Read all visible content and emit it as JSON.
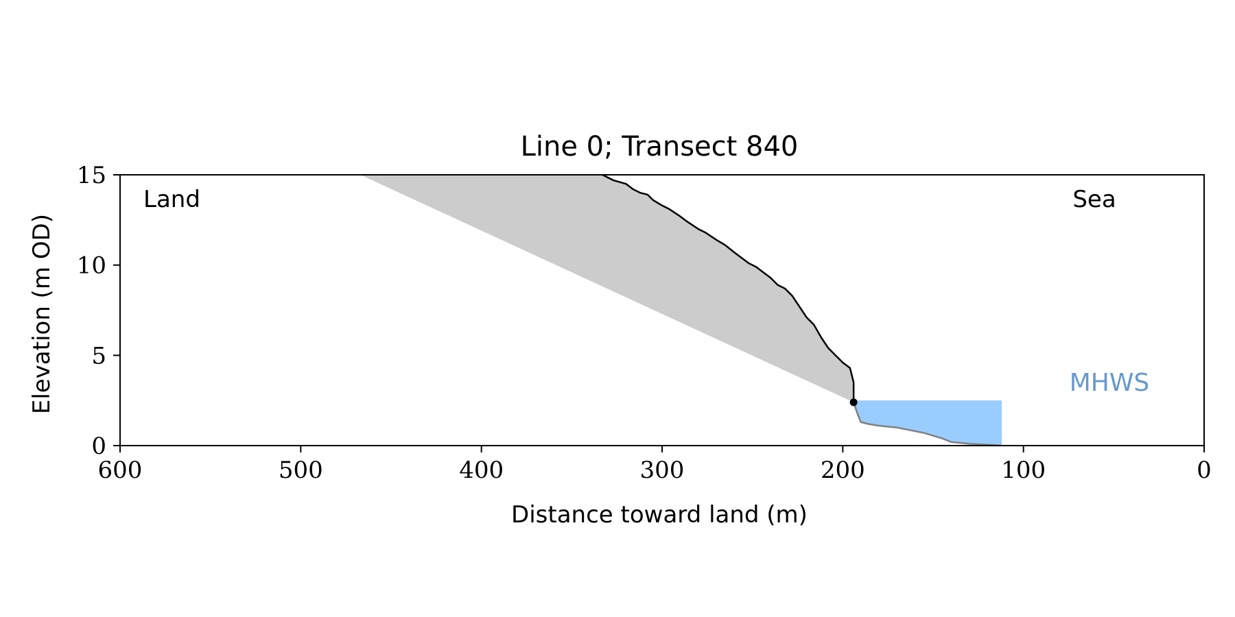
{
  "chart_data": {
    "type": "area",
    "title": "Line 0; Transect 840",
    "xlabel": "Distance toward land (m)",
    "ylabel": "Elevation (m OD)",
    "xlim": [
      600,
      0
    ],
    "ylim": [
      0,
      15
    ],
    "x_reversed": true,
    "grid": false,
    "x_ticks": [
      600,
      500,
      400,
      300,
      200,
      100,
      0
    ],
    "y_ticks": [
      0,
      5,
      10,
      15
    ],
    "annotations": {
      "land": "Land",
      "sea": "Sea",
      "mhws": "MHWS"
    },
    "colors": {
      "cliff_fill": "#cccccc",
      "water_fill": "#99ccff",
      "mhws_text": "#6699cc",
      "cliff_line": "#000000",
      "beach_line": "#808080",
      "axis": "#000000"
    },
    "cliff_profile": {
      "x": [
        333,
        327,
        320,
        316,
        312,
        308,
        305,
        300,
        296,
        290,
        286,
        280,
        276,
        270,
        265,
        260,
        256,
        252,
        248,
        244,
        240,
        236,
        232,
        228,
        224,
        220,
        216,
        212,
        208,
        204,
        200,
        196,
        195,
        194
      ],
      "y": [
        15.0,
        14.7,
        14.5,
        14.2,
        14.0,
        13.9,
        13.6,
        13.3,
        13.1,
        12.7,
        12.4,
        12.0,
        11.8,
        11.4,
        11.1,
        10.7,
        10.4,
        10.1,
        9.9,
        9.6,
        9.3,
        8.9,
        8.7,
        8.3,
        7.7,
        7.1,
        6.7,
        6.0,
        5.4,
        5.0,
        4.6,
        4.3,
        3.9,
        3.5
      ]
    },
    "slope_line": {
      "x": [
        467,
        194
      ],
      "y": [
        15.0,
        2.4
      ]
    },
    "cliff_toe": {
      "x": 194,
      "y": 2.4
    },
    "beach_profile": {
      "x": [
        194,
        192,
        190,
        186,
        180,
        175,
        170,
        165,
        160,
        155,
        150,
        145,
        140,
        130,
        120,
        112
      ],
      "y": [
        2.4,
        1.8,
        1.3,
        1.2,
        1.1,
        1.05,
        1.0,
        0.9,
        0.8,
        0.7,
        0.55,
        0.4,
        0.2,
        0.1,
        0.05,
        0.0
      ]
    },
    "mhws": {
      "level": 2.5,
      "x_start": 194,
      "x_end": 112
    }
  }
}
